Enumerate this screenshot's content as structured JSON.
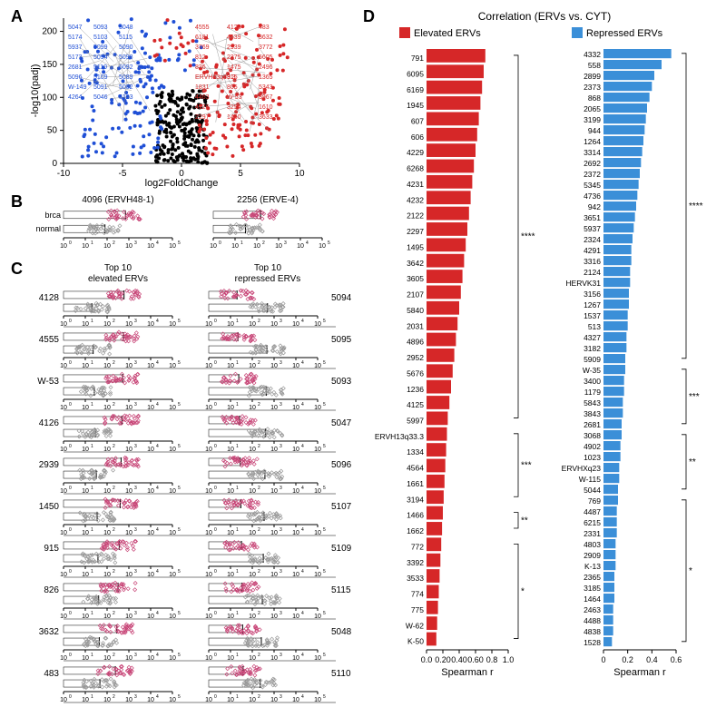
{
  "panelA": {
    "label": "A",
    "type": "scatter",
    "xlabel": "log2FoldChange",
    "ylabel": "-log10(padj)",
    "xlim": [
      -10,
      10
    ],
    "ylim": [
      0,
      220
    ],
    "xticks": [
      -10,
      -5,
      0,
      5,
      10
    ],
    "yticks": [
      0,
      50,
      100,
      150,
      200
    ],
    "colors": {
      "up": "#d62728",
      "down": "#1f4fd6",
      "ns": "#000000"
    },
    "blue_labels": [
      "5047",
      "5174",
      "5937",
      "5173",
      "2681",
      "5096",
      "W-149",
      "4264",
      "5093",
      "5103",
      "5099",
      "5094",
      "5110",
      "5109",
      "5091",
      "5046",
      "5048",
      "5115",
      "5090",
      "5098",
      "5092",
      "5089",
      "5082",
      "5123"
    ],
    "red_labels": [
      "4555",
      "6181",
      "3769",
      "812",
      "826",
      "ERVH13q33.3",
      "1831",
      "4463",
      "4126",
      "2297",
      "4128",
      "4639",
      "2939",
      "2375",
      "1475",
      "915",
      "805",
      "W-53",
      "3254",
      "1450",
      "483",
      "3632",
      "3772",
      "5605",
      "2496",
      "1365",
      "5343",
      "3967",
      "1610",
      "3633"
    ]
  },
  "panelB": {
    "label": "B",
    "type": "stripplot",
    "groups": [
      "brca",
      "normal"
    ],
    "colors": {
      "brca": "#c74476",
      "normal": "#999999"
    },
    "xticks": [
      "10^0",
      "10^1",
      "10^2",
      "10^3",
      "10^4",
      "10^5"
    ],
    "plots": [
      {
        "title": "4096 (ERVH48-1)"
      },
      {
        "title": "2256 (ERVE-4)"
      }
    ]
  },
  "panelC": {
    "label": "C",
    "type": "stripplot",
    "left_title": "Top 10\nelevated ERVs",
    "right_title": "Top 10\nrepressed ERVs",
    "colors": {
      "brca": "#c74476",
      "normal": "#999999"
    },
    "xticks": [
      "10^0",
      "10^1",
      "10^2",
      "10^3",
      "10^4",
      "10^5"
    ],
    "left": [
      "4128",
      "4555",
      "W-53",
      "4126",
      "2939",
      "1450",
      "915",
      "826",
      "3632",
      "483"
    ],
    "right": [
      "5094",
      "5095",
      "5093",
      "5047",
      "5096",
      "5107",
      "5109",
      "5115",
      "5048",
      "5110"
    ]
  },
  "panelD": {
    "label": "D",
    "type": "bar",
    "title": "Correlation (ERVs vs. CYT)",
    "legend": [
      {
        "label": "Elevated ERVs",
        "color": "#d62728"
      },
      {
        "label": "Repressed ERVs",
        "color": "#3b8fd8"
      }
    ],
    "xlabel": "Spearman r",
    "elevated": {
      "xlim": [
        0,
        1.0
      ],
      "xticks": [
        0,
        0.2,
        0.4,
        0.6,
        0.8,
        1.0
      ],
      "xtick_labels": [
        "0.0",
        "0.20",
        "0.40",
        "0.60",
        "0.8",
        "1.0"
      ],
      "items": [
        {
          "l": "791",
          "v": 0.72
        },
        {
          "l": "6095",
          "v": 0.7
        },
        {
          "l": "6169",
          "v": 0.68
        },
        {
          "l": "1945",
          "v": 0.66
        },
        {
          "l": "607",
          "v": 0.64
        },
        {
          "l": "606",
          "v": 0.62
        },
        {
          "l": "4229",
          "v": 0.6
        },
        {
          "l": "6268",
          "v": 0.58
        },
        {
          "l": "4231",
          "v": 0.56
        },
        {
          "l": "4232",
          "v": 0.54
        },
        {
          "l": "2122",
          "v": 0.52
        },
        {
          "l": "2297",
          "v": 0.5
        },
        {
          "l": "1495",
          "v": 0.48
        },
        {
          "l": "3642",
          "v": 0.46
        },
        {
          "l": "3605",
          "v": 0.44
        },
        {
          "l": "2107",
          "v": 0.42
        },
        {
          "l": "5840",
          "v": 0.4
        },
        {
          "l": "2031",
          "v": 0.38
        },
        {
          "l": "4896",
          "v": 0.36
        },
        {
          "l": "2952",
          "v": 0.34
        },
        {
          "l": "5676",
          "v": 0.32
        },
        {
          "l": "1236",
          "v": 0.3
        },
        {
          "l": "4125",
          "v": 0.28
        },
        {
          "l": "5997",
          "v": 0.26
        },
        {
          "l": "ERVH13q33.3",
          "v": 0.25
        },
        {
          "l": "1334",
          "v": 0.24
        },
        {
          "l": "4564",
          "v": 0.23
        },
        {
          "l": "1661",
          "v": 0.22
        },
        {
          "l": "3194",
          "v": 0.21
        },
        {
          "l": "1466",
          "v": 0.2
        },
        {
          "l": "1662",
          "v": 0.19
        },
        {
          "l": "772",
          "v": 0.18
        },
        {
          "l": "3392",
          "v": 0.17
        },
        {
          "l": "3533",
          "v": 0.16
        },
        {
          "l": "774",
          "v": 0.15
        },
        {
          "l": "775",
          "v": 0.14
        },
        {
          "l": "W-62",
          "v": 0.13
        },
        {
          "l": "K-50",
          "v": 0.12
        }
      ],
      "sig": [
        {
          "from": 0,
          "to": 23,
          "marks": "****"
        },
        {
          "from": 24,
          "to": 28,
          "marks": "***"
        },
        {
          "from": 29,
          "to": 30,
          "marks": "**"
        },
        {
          "from": 31,
          "to": 37,
          "marks": "*"
        }
      ]
    },
    "repressed": {
      "xlim": [
        0,
        0.6
      ],
      "xticks": [
        0,
        0.2,
        0.4,
        0.6
      ],
      "xtick_labels": [
        "0",
        "0.2",
        "0.4",
        "0.6"
      ],
      "items": [
        {
          "l": "4332",
          "v": 0.56
        },
        {
          "l": "558",
          "v": 0.48
        },
        {
          "l": "2899",
          "v": 0.42
        },
        {
          "l": "2373",
          "v": 0.4
        },
        {
          "l": "868",
          "v": 0.38
        },
        {
          "l": "2065",
          "v": 0.36
        },
        {
          "l": "3199",
          "v": 0.35
        },
        {
          "l": "944",
          "v": 0.34
        },
        {
          "l": "1264",
          "v": 0.33
        },
        {
          "l": "3314",
          "v": 0.32
        },
        {
          "l": "2692",
          "v": 0.31
        },
        {
          "l": "2372",
          "v": 0.3
        },
        {
          "l": "5345",
          "v": 0.29
        },
        {
          "l": "4736",
          "v": 0.28
        },
        {
          "l": "942",
          "v": 0.27
        },
        {
          "l": "3651",
          "v": 0.26
        },
        {
          "l": "5937",
          "v": 0.25
        },
        {
          "l": "2324",
          "v": 0.24
        },
        {
          "l": "4291",
          "v": 0.23
        },
        {
          "l": "3316",
          "v": 0.23
        },
        {
          "l": "2124",
          "v": 0.22
        },
        {
          "l": "HERVK31",
          "v": 0.22
        },
        {
          "l": "3156",
          "v": 0.21
        },
        {
          "l": "1267",
          "v": 0.21
        },
        {
          "l": "1537",
          "v": 0.2
        },
        {
          "l": "513",
          "v": 0.2
        },
        {
          "l": "4327",
          "v": 0.19
        },
        {
          "l": "3182",
          "v": 0.19
        },
        {
          "l": "5909",
          "v": 0.18
        },
        {
          "l": "W-35",
          "v": 0.18
        },
        {
          "l": "3400",
          "v": 0.17
        },
        {
          "l": "1179",
          "v": 0.17
        },
        {
          "l": "5843",
          "v": 0.16
        },
        {
          "l": "3843",
          "v": 0.16
        },
        {
          "l": "2681",
          "v": 0.15
        },
        {
          "l": "3068",
          "v": 0.15
        },
        {
          "l": "4902",
          "v": 0.14
        },
        {
          "l": "1023",
          "v": 0.14
        },
        {
          "l": "ERVHXq23",
          "v": 0.13
        },
        {
          "l": "W-115",
          "v": 0.13
        },
        {
          "l": "5044",
          "v": 0.12
        },
        {
          "l": "769",
          "v": 0.12
        },
        {
          "l": "4487",
          "v": 0.11
        },
        {
          "l": "6215",
          "v": 0.11
        },
        {
          "l": "2331",
          "v": 0.11
        },
        {
          "l": "4803",
          "v": 0.1
        },
        {
          "l": "2909",
          "v": 0.1
        },
        {
          "l": "K-13",
          "v": 0.1
        },
        {
          "l": "2365",
          "v": 0.09
        },
        {
          "l": "3185",
          "v": 0.09
        },
        {
          "l": "1464",
          "v": 0.09
        },
        {
          "l": "2463",
          "v": 0.08
        },
        {
          "l": "4488",
          "v": 0.08
        },
        {
          "l": "4838",
          "v": 0.08
        },
        {
          "l": "1528",
          "v": 0.07
        }
      ],
      "sig": [
        {
          "from": 0,
          "to": 28,
          "marks": "****"
        },
        {
          "from": 29,
          "to": 34,
          "marks": "***"
        },
        {
          "from": 35,
          "to": 40,
          "marks": "**"
        },
        {
          "from": 41,
          "to": 54,
          "marks": "*"
        }
      ]
    }
  }
}
